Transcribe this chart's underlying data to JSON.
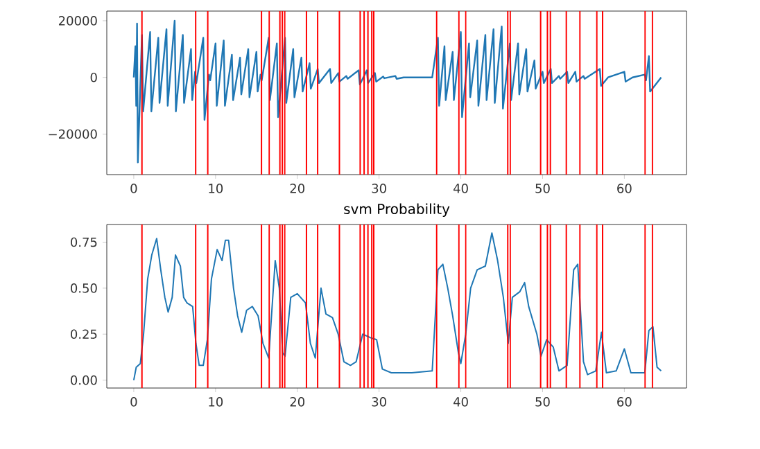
{
  "chart_data": [
    {
      "type": "line",
      "color": "#1f77b4",
      "x": [
        0,
        0.2,
        0.3,
        0.4,
        0.5,
        1,
        1.15,
        2,
        2.15,
        3,
        3.15,
        4,
        4.15,
        5,
        5.15,
        6,
        6.15,
        7,
        7.15,
        7.5,
        7.65,
        8.5,
        8.65,
        9.2,
        9.35,
        10,
        10.15,
        11,
        11.15,
        12,
        12.15,
        13,
        13.15,
        14,
        14.15,
        15,
        15.15,
        15.5,
        15.65,
        16.5,
        16.65,
        17.5,
        17.65,
        18.5,
        18.65,
        19.5,
        19.65,
        20.5,
        20.65,
        21.5,
        21.65,
        22.5,
        22.65,
        24,
        24.15,
        25,
        25.15,
        26,
        26.15,
        27.5,
        27.65,
        28.5,
        28.65,
        29.5,
        29.65,
        30.5,
        30.65,
        32,
        32.15,
        33,
        36.5,
        37.2,
        37.35,
        38,
        38.15,
        39,
        39.15,
        40,
        40.15,
        41,
        41.15,
        42,
        42.15,
        43,
        43.15,
        44,
        44.15,
        45,
        45.15,
        46,
        46.15,
        47,
        47.15,
        48,
        48.15,
        49,
        49.15,
        50,
        50.15,
        51,
        51.15,
        52,
        52.15,
        53,
        53.15,
        54,
        54.15,
        55,
        55.15,
        57,
        57.15,
        58,
        60,
        60.15,
        61,
        62.5,
        62.65,
        63,
        63.15,
        64.5
      ],
      "values": [
        0,
        11000,
        -10000,
        19000,
        -30000,
        15000,
        -12000,
        16000,
        -12000,
        14000,
        -9000,
        17000,
        -10000,
        20000,
        -12000,
        15000,
        -9000,
        10000,
        -8000,
        2000,
        -2000,
        14000,
        -15000,
        1000,
        -1000,
        12000,
        -10000,
        13000,
        -10000,
        8000,
        -8000,
        7000,
        -6000,
        10000,
        -7000,
        9000,
        -5000,
        1000,
        -1000,
        14000,
        -8000,
        12000,
        -14000,
        14000,
        -9000,
        10000,
        -7000,
        7000,
        -5000,
        5000,
        -4000,
        3000,
        -2000,
        3000,
        -2000,
        1500,
        -1500,
        500,
        -500,
        2500,
        -2500,
        2500,
        -2000,
        1500,
        -1500,
        300,
        -300,
        500,
        -500,
        0,
        0,
        14000,
        -10000,
        11000,
        -8000,
        9000,
        -8000,
        16000,
        -14000,
        12000,
        -7000,
        13000,
        -10000,
        15000,
        -8000,
        17000,
        -9000,
        18000,
        -11000,
        12000,
        -8000,
        12000,
        -6000,
        10000,
        -5000,
        6000,
        -4000,
        2000,
        -2000,
        3000,
        -2000,
        500,
        -500,
        2000,
        -2000,
        2000,
        -1500,
        500,
        -500,
        3000,
        -3000,
        0,
        2000,
        -1500,
        0,
        1000,
        -1000,
        7500,
        -5000,
        0
      ],
      "xlim": [
        -3.3,
        67.6
      ],
      "ylim": [
        -34300,
        23400
      ],
      "xticks": [
        0,
        10,
        20,
        30,
        40,
        50,
        60
      ],
      "yticks": [
        {
          "value": -20000,
          "label": "−20000"
        },
        0,
        20000
      ],
      "ref_lines": [
        {
          "axis": "x",
          "value": 1.0,
          "color": "#ff0000"
        },
        {
          "axis": "x",
          "value": 7.57,
          "color": "#ff0000"
        },
        {
          "axis": "x",
          "value": 9.05,
          "color": "#ff0000"
        },
        {
          "axis": "x",
          "value": 15.62,
          "color": "#ff0000"
        },
        {
          "axis": "x",
          "value": 16.57,
          "color": "#ff0000"
        },
        {
          "axis": "x",
          "value": 17.87,
          "color": "#ff0000"
        },
        {
          "axis": "x",
          "value": 18.17,
          "color": "#ff0000"
        },
        {
          "axis": "x",
          "value": 18.46,
          "color": "#ff0000"
        },
        {
          "axis": "x",
          "value": 21.12,
          "color": "#ff0000"
        },
        {
          "axis": "x",
          "value": 22.49,
          "color": "#ff0000"
        },
        {
          "axis": "x",
          "value": 25.15,
          "color": "#ff0000"
        },
        {
          "axis": "x",
          "value": 27.69,
          "color": "#ff0000"
        },
        {
          "axis": "x",
          "value": 28.17,
          "color": "#ff0000"
        },
        {
          "axis": "x",
          "value": 28.64,
          "color": "#ff0000"
        },
        {
          "axis": "x",
          "value": 29.11,
          "color": "#ff0000"
        },
        {
          "axis": "x",
          "value": 29.35,
          "color": "#ff0000"
        },
        {
          "axis": "x",
          "value": 37.04,
          "color": "#ff0000"
        },
        {
          "axis": "x",
          "value": 39.76,
          "color": "#ff0000"
        },
        {
          "axis": "x",
          "value": 40.59,
          "color": "#ff0000"
        },
        {
          "axis": "x",
          "value": 45.74,
          "color": "#ff0000"
        },
        {
          "axis": "x",
          "value": 46.04,
          "color": "#ff0000"
        },
        {
          "axis": "x",
          "value": 49.76,
          "color": "#ff0000"
        },
        {
          "axis": "x",
          "value": 50.59,
          "color": "#ff0000"
        },
        {
          "axis": "x",
          "value": 50.95,
          "color": "#ff0000"
        },
        {
          "axis": "x",
          "value": 52.9,
          "color": "#ff0000"
        },
        {
          "axis": "x",
          "value": 54.56,
          "color": "#ff0000"
        },
        {
          "axis": "x",
          "value": 56.63,
          "color": "#ff0000"
        },
        {
          "axis": "x",
          "value": 57.34,
          "color": "#ff0000"
        },
        {
          "axis": "x",
          "value": 62.54,
          "color": "#ff0000"
        },
        {
          "axis": "x",
          "value": 63.43,
          "color": "#ff0000"
        }
      ]
    },
    {
      "type": "line",
      "color": "#1f77b4",
      "title": "svm Probability",
      "x": [
        0,
        0.3,
        0.8,
        1.2,
        1.7,
        2.2,
        2.8,
        3.3,
        3.8,
        4.2,
        4.7,
        5.1,
        5.7,
        6.1,
        6.5,
        7.2,
        7.6,
        8.0,
        8.5,
        9.0,
        9.5,
        10.2,
        10.8,
        11.2,
        11.6,
        12.2,
        12.7,
        13.2,
        13.8,
        14.5,
        15.2,
        15.8,
        16.5,
        17.3,
        17.8,
        18.2,
        18.5,
        19.2,
        20.0,
        21.0,
        21.6,
        22.2,
        22.9,
        23.5,
        24.3,
        25.0,
        25.7,
        26.5,
        27.2,
        28.0,
        29.0,
        29.7,
        30.4,
        31.5,
        34,
        36.5,
        37.2,
        37.8,
        38.4,
        39.0,
        39.7,
        40.0,
        40.6,
        41.2,
        42,
        43,
        43.8,
        44.5,
        45.2,
        45.8,
        46.3,
        47.2,
        47.8,
        48.3,
        49.3,
        49.8,
        50.5,
        51.3,
        52,
        53,
        53.8,
        54.3,
        55,
        55.5,
        56.5,
        57.2,
        57.8,
        59,
        60,
        60.8,
        62.5,
        63.0,
        63.5,
        64,
        64.5
      ],
      "values": [
        0.0,
        0.07,
        0.09,
        0.25,
        0.55,
        0.68,
        0.77,
        0.6,
        0.45,
        0.37,
        0.45,
        0.68,
        0.62,
        0.45,
        0.42,
        0.4,
        0.2,
        0.08,
        0.08,
        0.22,
        0.55,
        0.71,
        0.65,
        0.76,
        0.76,
        0.5,
        0.35,
        0.26,
        0.38,
        0.4,
        0.35,
        0.2,
        0.12,
        0.65,
        0.5,
        0.15,
        0.13,
        0.45,
        0.47,
        0.42,
        0.2,
        0.12,
        0.5,
        0.36,
        0.34,
        0.25,
        0.1,
        0.08,
        0.1,
        0.25,
        0.23,
        0.22,
        0.06,
        0.04,
        0.04,
        0.05,
        0.6,
        0.63,
        0.5,
        0.35,
        0.15,
        0.09,
        0.25,
        0.5,
        0.6,
        0.62,
        0.8,
        0.65,
        0.45,
        0.2,
        0.45,
        0.48,
        0.53,
        0.4,
        0.25,
        0.13,
        0.22,
        0.18,
        0.05,
        0.08,
        0.6,
        0.63,
        0.1,
        0.03,
        0.05,
        0.26,
        0.04,
        0.05,
        0.17,
        0.04,
        0.04,
        0.27,
        0.29,
        0.07,
        0.05
      ],
      "xlim": [
        -3.3,
        67.6
      ],
      "ylim": [
        -0.043,
        0.846
      ],
      "xticks": [
        0,
        10,
        20,
        30,
        40,
        50,
        60
      ],
      "yticks": [
        {
          "value": 0,
          "label": "0.00"
        },
        {
          "value": 0.25,
          "label": "0.25"
        },
        {
          "value": 0.5,
          "label": "0.50"
        },
        {
          "value": 0.75,
          "label": "0.75"
        }
      ],
      "ref_lines": [
        {
          "axis": "x",
          "value": 1.0,
          "color": "#ff0000"
        },
        {
          "axis": "x",
          "value": 7.57,
          "color": "#ff0000"
        },
        {
          "axis": "x",
          "value": 9.05,
          "color": "#ff0000"
        },
        {
          "axis": "x",
          "value": 15.62,
          "color": "#ff0000"
        },
        {
          "axis": "x",
          "value": 16.57,
          "color": "#ff0000"
        },
        {
          "axis": "x",
          "value": 17.87,
          "color": "#ff0000"
        },
        {
          "axis": "x",
          "value": 18.17,
          "color": "#ff0000"
        },
        {
          "axis": "x",
          "value": 18.46,
          "color": "#ff0000"
        },
        {
          "axis": "x",
          "value": 21.12,
          "color": "#ff0000"
        },
        {
          "axis": "x",
          "value": 22.49,
          "color": "#ff0000"
        },
        {
          "axis": "x",
          "value": 25.15,
          "color": "#ff0000"
        },
        {
          "axis": "x",
          "value": 27.69,
          "color": "#ff0000"
        },
        {
          "axis": "x",
          "value": 28.17,
          "color": "#ff0000"
        },
        {
          "axis": "x",
          "value": 28.64,
          "color": "#ff0000"
        },
        {
          "axis": "x",
          "value": 29.11,
          "color": "#ff0000"
        },
        {
          "axis": "x",
          "value": 29.35,
          "color": "#ff0000"
        },
        {
          "axis": "x",
          "value": 37.04,
          "color": "#ff0000"
        },
        {
          "axis": "x",
          "value": 39.76,
          "color": "#ff0000"
        },
        {
          "axis": "x",
          "value": 40.59,
          "color": "#ff0000"
        },
        {
          "axis": "x",
          "value": 45.74,
          "color": "#ff0000"
        },
        {
          "axis": "x",
          "value": 46.04,
          "color": "#ff0000"
        },
        {
          "axis": "x",
          "value": 49.76,
          "color": "#ff0000"
        },
        {
          "axis": "x",
          "value": 50.59,
          "color": "#ff0000"
        },
        {
          "axis": "x",
          "value": 50.95,
          "color": "#ff0000"
        },
        {
          "axis": "x",
          "value": 52.9,
          "color": "#ff0000"
        },
        {
          "axis": "x",
          "value": 54.56,
          "color": "#ff0000"
        },
        {
          "axis": "x",
          "value": 56.63,
          "color": "#ff0000"
        },
        {
          "axis": "x",
          "value": 57.34,
          "color": "#ff0000"
        },
        {
          "axis": "x",
          "value": 62.54,
          "color": "#ff0000"
        },
        {
          "axis": "x",
          "value": 63.43,
          "color": "#ff0000"
        }
      ]
    }
  ]
}
